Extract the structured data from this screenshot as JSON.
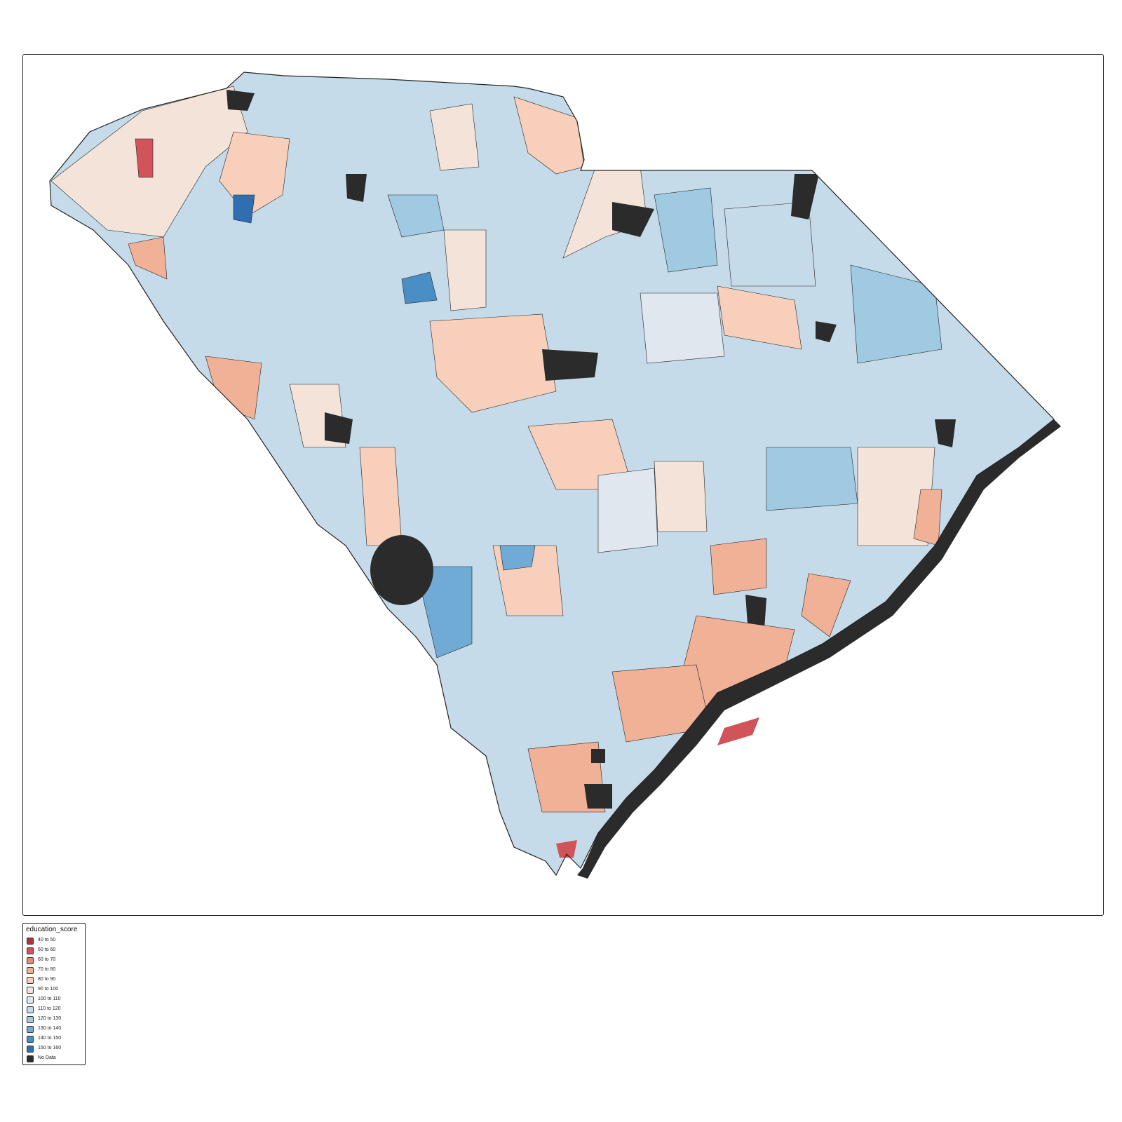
{
  "map": {
    "subject": "South Carolina census tracts",
    "variable": "education_score"
  },
  "legend": {
    "title": "education_score",
    "classes": [
      {
        "label": "40 to 50",
        "color": "#b2313f"
      },
      {
        "label": "50 to 60",
        "color": "#d0545a"
      },
      {
        "label": "60 to 70",
        "color": "#e58a76"
      },
      {
        "label": "70 to 80",
        "color": "#f1b196"
      },
      {
        "label": "80 to 90",
        "color": "#f7cfba"
      },
      {
        "label": "90 to 100",
        "color": "#f4e3d8"
      },
      {
        "label": "100 to 110",
        "color": "#e1e7ee"
      },
      {
        "label": "110 to 120",
        "color": "#c6dbea"
      },
      {
        "label": "120 to 130",
        "color": "#9fcae1"
      },
      {
        "label": "130 to 140",
        "color": "#6fabd4"
      },
      {
        "label": "140 to 150",
        "color": "#4a8ec6"
      },
      {
        "label": "150 to 160",
        "color": "#2f6fb0"
      },
      {
        "label": "No Data",
        "color": "#2b2b2b"
      }
    ]
  }
}
